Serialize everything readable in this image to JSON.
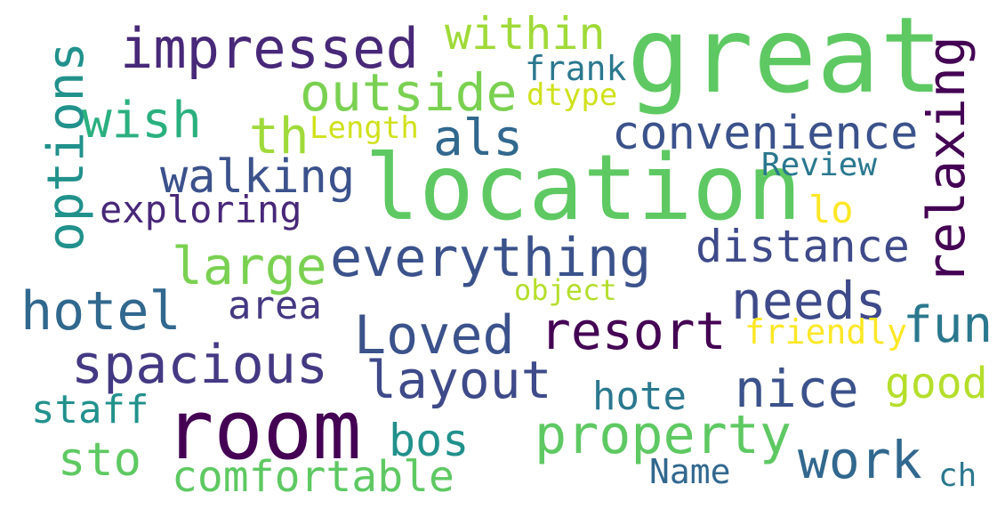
{
  "words": [
    {
      "text": "great",
      "color": "#5ec962"
    },
    {
      "text": "location",
      "color": "#5ec962"
    },
    {
      "text": "room",
      "color": "#440154"
    },
    {
      "text": "impressed",
      "color": "#482878"
    },
    {
      "text": "within",
      "color": "#a0da39"
    },
    {
      "text": "frank",
      "color": "#2a788e"
    },
    {
      "text": "dtype",
      "color": "#d0e11c"
    },
    {
      "text": "outside",
      "color": "#7ad151"
    },
    {
      "text": "options",
      "color": "#21918c"
    },
    {
      "text": "wish",
      "color": "#2ab07f"
    },
    {
      "text": "th",
      "color": "#a0da39"
    },
    {
      "text": "Length",
      "color": "#d0e11c"
    },
    {
      "text": "als",
      "color": "#31688e"
    },
    {
      "text": "convenience",
      "color": "#3b528b"
    },
    {
      "text": "relaxing",
      "color": "#440154"
    },
    {
      "text": "walking",
      "color": "#3b528b"
    },
    {
      "text": "Review",
      "color": "#2a788e"
    },
    {
      "text": "exploring",
      "color": "#482878"
    },
    {
      "text": "lo",
      "color": "#fde725"
    },
    {
      "text": "large",
      "color": "#7ad151"
    },
    {
      "text": "everything",
      "color": "#3b528b"
    },
    {
      "text": "distance",
      "color": "#3e4a89"
    },
    {
      "text": "hotel",
      "color": "#31688e"
    },
    {
      "text": "area",
      "color": "#443983"
    },
    {
      "text": "object",
      "color": "#b5de2b"
    },
    {
      "text": "needs",
      "color": "#3e4a89"
    },
    {
      "text": "Loved",
      "color": "#3b528b"
    },
    {
      "text": "resort",
      "color": "#440154"
    },
    {
      "text": "fun",
      "color": "#2a788e"
    },
    {
      "text": "friendly",
      "color": "#fde725"
    },
    {
      "text": "spacious",
      "color": "#443983"
    },
    {
      "text": "layout",
      "color": "#3e4a89"
    },
    {
      "text": "nice",
      "color": "#3b528b"
    },
    {
      "text": "good",
      "color": "#b5de2b"
    },
    {
      "text": "staff",
      "color": "#21918c"
    },
    {
      "text": "hote",
      "color": "#2a788e"
    },
    {
      "text": "bos",
      "color": "#21918c"
    },
    {
      "text": "property",
      "color": "#5ec962"
    },
    {
      "text": "sto",
      "color": "#5ec962"
    },
    {
      "text": "work",
      "color": "#31688e"
    },
    {
      "text": "comfortable",
      "color": "#5ec962"
    },
    {
      "text": "Name",
      "color": "#31688e"
    },
    {
      "text": "ch",
      "color": "#2a788e"
    }
  ]
}
